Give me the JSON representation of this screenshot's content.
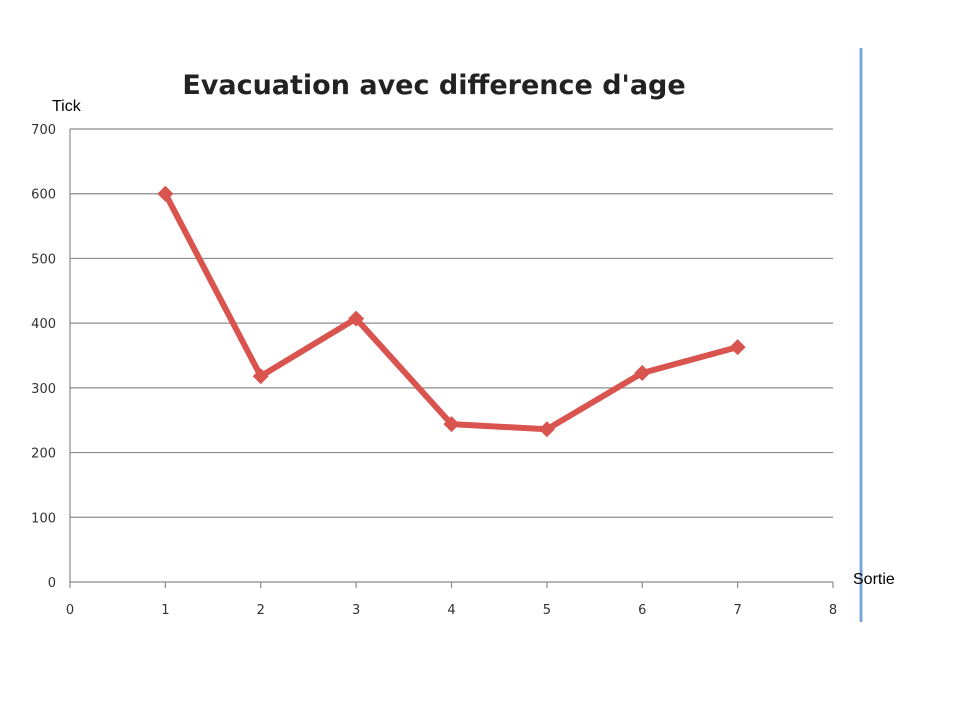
{
  "chart_data": {
    "type": "line",
    "title": "Evacuation avec difference d'age",
    "xlabel": "Sortie",
    "ylabel": "Tick",
    "xlim": [
      0,
      8
    ],
    "ylim": [
      0,
      700
    ],
    "x_ticks": [
      0,
      1,
      2,
      3,
      4,
      5,
      6,
      7,
      8
    ],
    "y_ticks": [
      0,
      100,
      200,
      300,
      400,
      500,
      600,
      700
    ],
    "grid": true,
    "legend": "none",
    "series": [
      {
        "color": "#d9534f",
        "marker": "diamond",
        "x": [
          1,
          2,
          3,
          4,
          5,
          6,
          7
        ],
        "y": [
          600,
          318,
          407,
          244,
          236,
          323,
          363
        ]
      }
    ]
  }
}
